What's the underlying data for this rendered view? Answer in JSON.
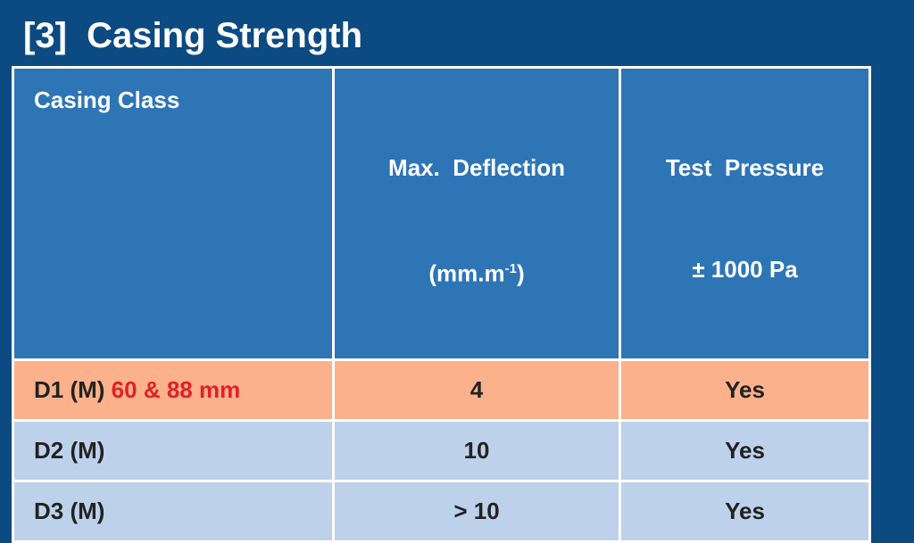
{
  "title": "[3]  Casing Strength",
  "table": {
    "header": [
      {
        "lines": [
          "Casing Class"
        ]
      },
      {
        "lines": [
          "Max.  Deflection"
        ],
        "unit": "(mm.m",
        "exponent": "-1",
        "close": ")"
      },
      {
        "lines": [
          "Test  Pressure",
          "± 1000 Pa"
        ]
      }
    ],
    "rows": [
      {
        "class": "D1 (M)",
        "note": "60 & 88 mm",
        "deflection": "4",
        "pressure": "Yes"
      },
      {
        "class": "D2 (M)",
        "deflection": "10",
        "pressure": "Yes"
      },
      {
        "class": "D3 (M)",
        "deflection": "> 10",
        "pressure": "Yes"
      }
    ]
  }
}
